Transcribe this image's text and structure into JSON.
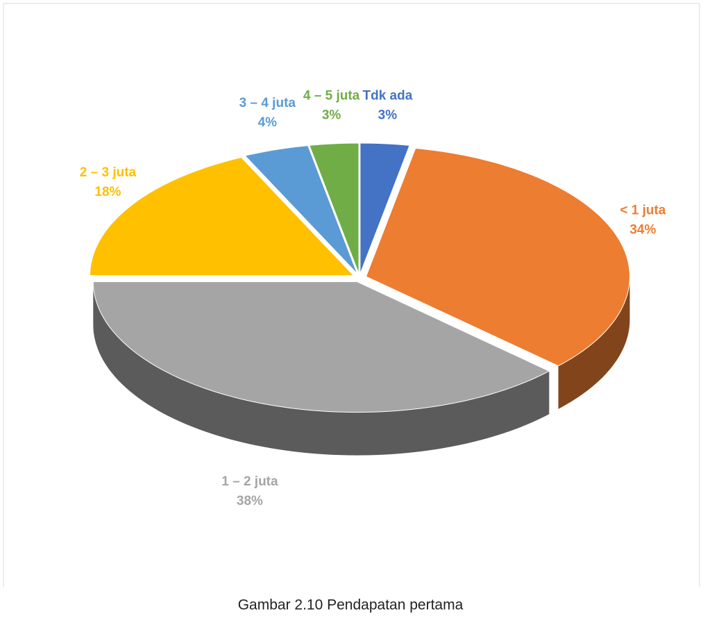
{
  "chart_data": {
    "type": "pie",
    "categories": [
      "Tdk ada",
      "< 1 juta",
      "1 – 2 juta",
      "2 – 3 juta",
      "3 – 4 juta",
      "4 – 5 juta"
    ],
    "values": [
      3,
      34,
      38,
      18,
      4,
      3
    ],
    "value_labels": [
      "3%",
      "34%",
      "38%",
      "18%",
      "4%",
      "3%"
    ],
    "colors": [
      "#4472c4",
      "#ed7d31",
      "#a5a5a5",
      "#ffc000",
      "#5b9bd5",
      "#70ad47"
    ],
    "caption": "Gambar 2.10 Pendapatan pertama"
  }
}
